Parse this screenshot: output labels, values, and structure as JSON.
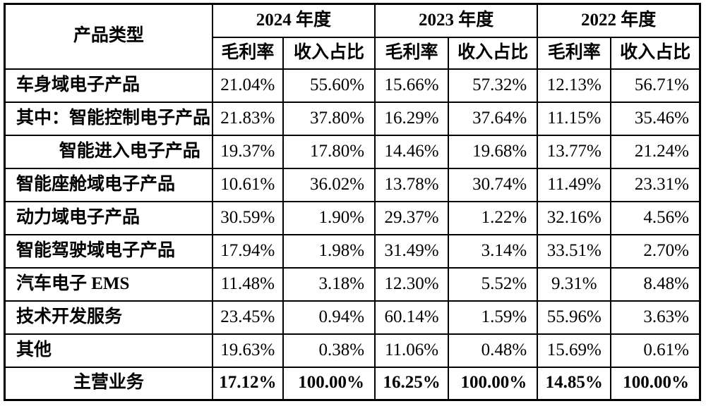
{
  "table": {
    "product_header": "产品类型",
    "year_groups": [
      {
        "year": "2024 年度",
        "metrics": [
          "毛利率",
          "收入占比"
        ]
      },
      {
        "year": "2023 年度",
        "metrics": [
          "毛利率",
          "收入占比"
        ]
      },
      {
        "year": "2022 年度",
        "metrics": [
          "毛利率",
          "收入占比"
        ]
      }
    ],
    "rows": [
      {
        "label": "车身域电子产品",
        "align": "left",
        "values": [
          "21.04%",
          "55.60%",
          "15.66%",
          "57.32%",
          "12.13%",
          "56.71%"
        ]
      },
      {
        "label": "其中：智能控制电子产品",
        "align": "left",
        "values": [
          "21.83%",
          "37.80%",
          "16.29%",
          "37.64%",
          "11.15%",
          "35.46%"
        ]
      },
      {
        "label": "智能进入电子产品",
        "align": "right",
        "values": [
          "19.37%",
          "17.80%",
          "14.46%",
          "19.68%",
          "13.77%",
          "21.24%"
        ]
      },
      {
        "label": "智能座舱域电子产品",
        "align": "left",
        "values": [
          "10.61%",
          "36.02%",
          "13.78%",
          "30.74%",
          "11.49%",
          "23.31%"
        ]
      },
      {
        "label": "动力域电子产品",
        "align": "left",
        "values": [
          "30.59%",
          "1.90%",
          "29.37%",
          "1.22%",
          "32.16%",
          "4.56%"
        ]
      },
      {
        "label": "智能驾驶域电子产品",
        "align": "left",
        "values": [
          "17.94%",
          "1.98%",
          "31.49%",
          "3.14%",
          "33.51%",
          "2.70%"
        ]
      },
      {
        "label": "汽车电子 EMS",
        "align": "left",
        "values": [
          "11.48%",
          "3.18%",
          "12.30%",
          "5.52%",
          "9.31%",
          "8.48%"
        ]
      },
      {
        "label": "技术开发服务",
        "align": "left",
        "values": [
          "23.45%",
          "0.94%",
          "60.14%",
          "1.59%",
          "55.96%",
          "3.63%"
        ]
      },
      {
        "label": "其他",
        "align": "left",
        "values": [
          "19.63%",
          "0.38%",
          "11.06%",
          "0.48%",
          "15.69%",
          "0.61%"
        ]
      }
    ],
    "total_row": {
      "label": "主营业务",
      "align": "center",
      "values": [
        "17.12%",
        "100.00%",
        "16.25%",
        "100.00%",
        "14.85%",
        "100.00%"
      ]
    },
    "colors": {
      "border": "#000000",
      "text": "#000000",
      "background": "#ffffff"
    }
  }
}
